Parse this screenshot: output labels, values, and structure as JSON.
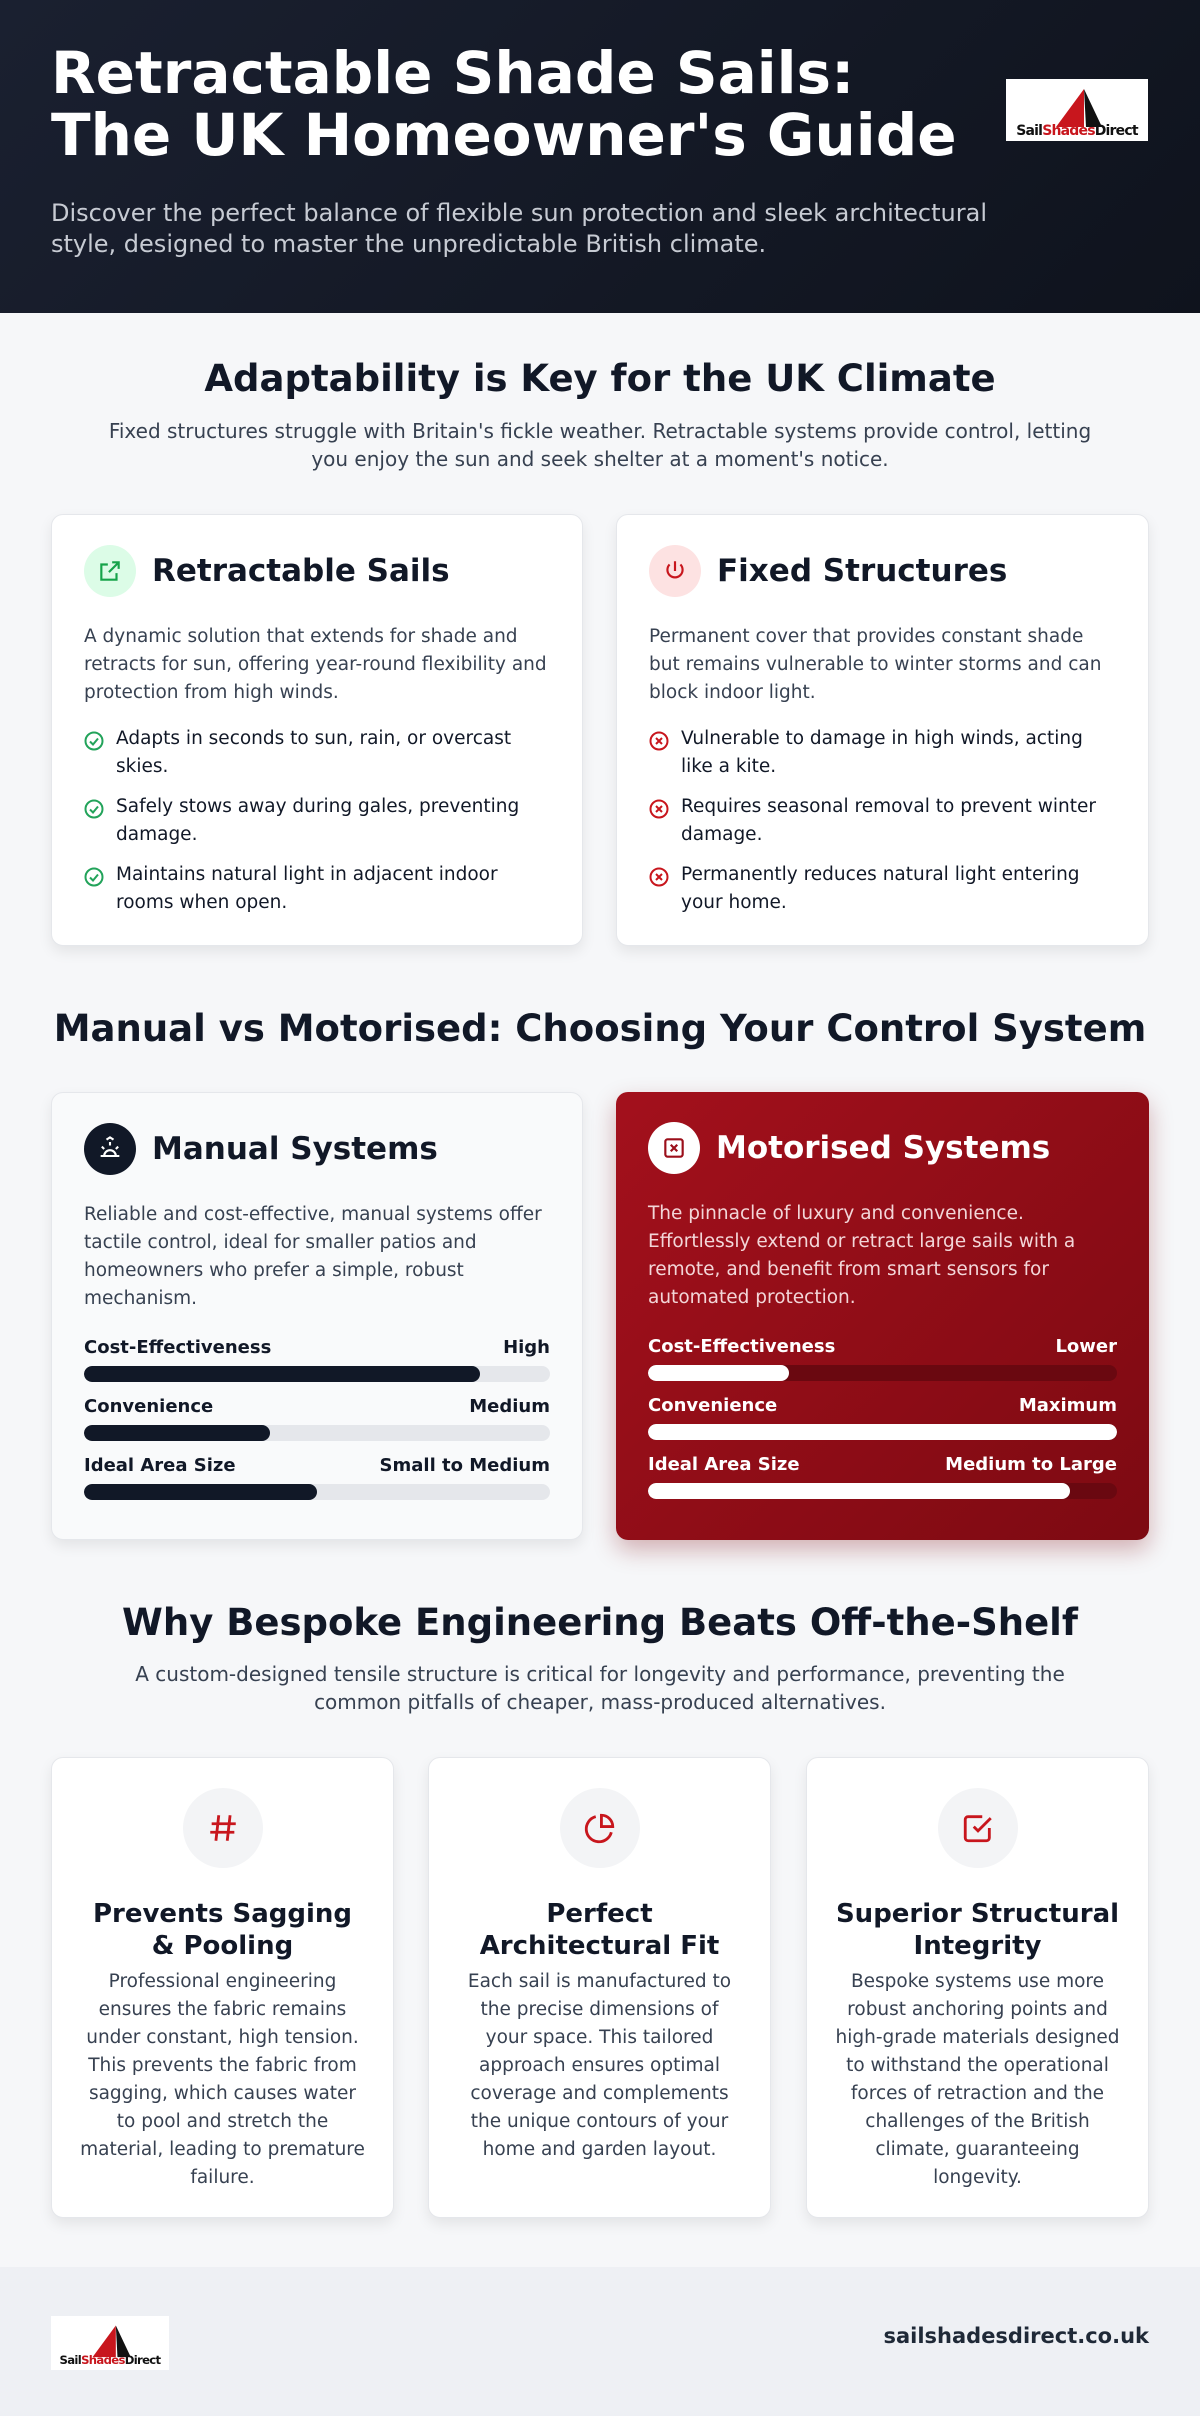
{
  "header": {
    "title": "Retractable Shade Sails: The UK Homeowner's Guide",
    "subtitle": "Discover the perfect balance of flexible sun protection and sleek architectural style, designed to master the unpredictable British climate.",
    "logo": [
      "Sail",
      "Shades",
      "Direct"
    ]
  },
  "adaptability": {
    "heading": "Adaptability is Key for the UK Climate",
    "intro": "Fixed structures struggle with Britain's fickle weather. Retractable systems provide control, letting you enjoy the sun and seek shelter at a moment's notice.",
    "cards": [
      {
        "title": "Retractable Sails",
        "description": "A dynamic solution that extends for shade and retracts for sun, offering year-round flexibility and protection from high winds.",
        "points": [
          "Adapts in seconds to sun, rain, or overcast skies.",
          "Safely stows away during gales, preventing damage.",
          "Maintains natural light in adjacent indoor rooms when open."
        ]
      },
      {
        "title": "Fixed Structures",
        "description": "Permanent cover that provides constant shade but remains vulnerable to winter storms and can block indoor light.",
        "points": [
          "Vulnerable to damage in high winds, acting like a kite.",
          "Requires seasonal removal to prevent winter damage.",
          "Permanently reduces natural light entering your home."
        ]
      }
    ]
  },
  "control": {
    "heading": "Manual vs Motorised: Choosing Your Control System",
    "systems": [
      {
        "title": "Manual Systems",
        "description": "Reliable and cost-effective, manual systems offer tactile control, ideal for smaller patios and homeowners who prefer a simple, robust mechanism.",
        "metrics": [
          {
            "label": "Cost-Effectiveness",
            "rating": "High",
            "level": 85
          },
          {
            "label": "Convenience",
            "rating": "Medium",
            "level": 40
          },
          {
            "label": "Ideal Area Size",
            "rating": "Small to Medium",
            "level": 50
          }
        ]
      },
      {
        "title": "Motorised Systems",
        "description": "The pinnacle of luxury and convenience. Effortlessly extend or retract large sails with a remote, and benefit from smart sensors for automated protection.",
        "metrics": [
          {
            "label": "Cost-Effectiveness",
            "rating": "Lower",
            "level": 30
          },
          {
            "label": "Convenience",
            "rating": "Maximum",
            "level": 100
          },
          {
            "label": "Ideal Area Size",
            "rating": "Medium to Large",
            "level": 90
          }
        ]
      }
    ]
  },
  "bespoke": {
    "heading": "Why Bespoke Engineering Beats Off-the-Shelf",
    "intro": "A custom-designed tensile structure is critical for longevity and performance, preventing the common pitfalls of cheaper, mass-produced alternatives.",
    "features": [
      {
        "title": "Prevents Sagging & Pooling",
        "text": "Professional engineering ensures the fabric remains under constant, high tension. This prevents the fabric from sagging, which causes water to pool and stretch the material, leading to premature failure."
      },
      {
        "title": "Perfect Architectural Fit",
        "text": "Each sail is manufactured to the precise dimensions of your space. This tailored approach ensures optimal coverage and complements the unique contours of your home and garden layout."
      },
      {
        "title": "Superior Structural Integrity",
        "text": "Bespoke systems use more robust anchoring points and high-grade materials designed to withstand the operational forces of retraction and the challenges of the British climate, guaranteeing longevity."
      }
    ]
  },
  "footer": {
    "logo": [
      "Sail",
      "Shades",
      "Direct"
    ],
    "url": "sailshadesdirect.co.uk"
  }
}
